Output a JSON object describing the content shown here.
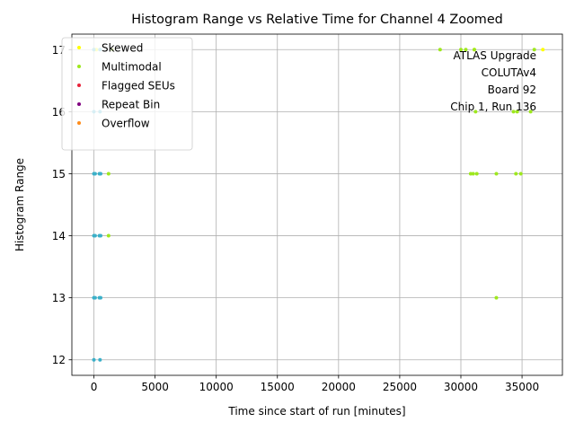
{
  "chart_data": {
    "type": "scatter",
    "title": "Histogram Range vs Relative Time for Channel 4 Zoomed",
    "xlabel": "Time since start of run [minutes]",
    "ylabel": "Histogram Range",
    "xlim": [
      -1800,
      38300
    ],
    "ylim": [
      11.75,
      17.25
    ],
    "xticks": [
      0,
      5000,
      10000,
      15000,
      20000,
      25000,
      30000,
      35000
    ],
    "yticks": [
      12,
      13,
      14,
      15,
      16,
      17
    ],
    "grid": true,
    "legend_position": "top-left",
    "annotation_lines": [
      "ATLAS Upgrade",
      "COLUTAv4",
      "Board 92",
      "Chip 1, Run 136"
    ],
    "series": [
      {
        "name": "Skewed",
        "color": "#ffff00",
        "points": [
          [
            30,
            17
          ],
          [
            200,
            17
          ],
          [
            36700,
            17
          ],
          [
            31100,
            17
          ]
        ]
      },
      {
        "name": "Multimodal",
        "color": "#9ee81e",
        "points": [
          [
            28300,
            17
          ],
          [
            30000,
            17
          ],
          [
            30400,
            17
          ],
          [
            31100,
            17
          ],
          [
            36000,
            17
          ],
          [
            1500,
            17
          ],
          [
            31200,
            16
          ],
          [
            34300,
            16
          ],
          [
            34600,
            16
          ],
          [
            35700,
            16
          ],
          [
            1200,
            15
          ],
          [
            500,
            15
          ],
          [
            30800,
            15
          ],
          [
            31000,
            15
          ],
          [
            31300,
            15
          ],
          [
            32900,
            15
          ],
          [
            34500,
            15
          ],
          [
            34900,
            15
          ],
          [
            1200,
            14
          ],
          [
            32900,
            13
          ]
        ]
      },
      {
        "name": "Flagged SEUs",
        "color": "#e8233a",
        "points": []
      },
      {
        "name": "Repeat Bin",
        "color": "#800080",
        "points": []
      },
      {
        "name": "Overflow",
        "color": "#ff8c1a",
        "points": []
      },
      {
        "name": "",
        "color": "#3bb0c9",
        "points": [
          [
            0,
            17
          ],
          [
            500,
            17
          ],
          [
            0,
            16
          ],
          [
            500,
            16
          ],
          [
            0,
            15
          ],
          [
            100,
            15
          ],
          [
            450,
            15
          ],
          [
            550,
            15
          ],
          [
            0,
            14
          ],
          [
            100,
            14
          ],
          [
            450,
            14
          ],
          [
            550,
            14
          ],
          [
            0,
            13
          ],
          [
            100,
            13
          ],
          [
            450,
            13
          ],
          [
            550,
            13
          ],
          [
            0,
            12
          ],
          [
            500,
            12
          ]
        ]
      }
    ]
  }
}
